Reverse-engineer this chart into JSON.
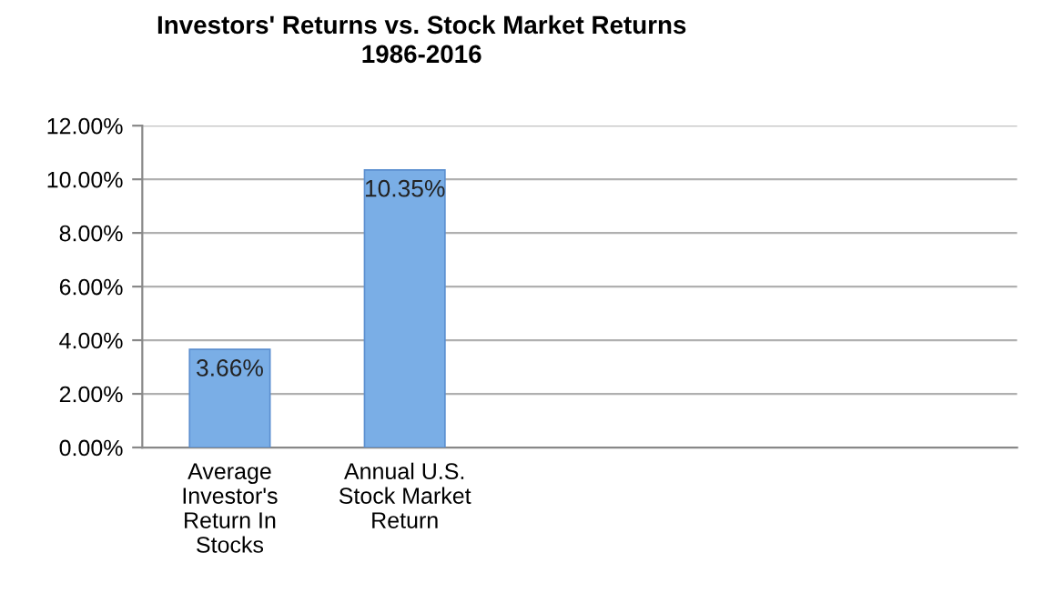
{
  "chart_data": {
    "type": "bar",
    "title": "Investors' Returns vs. Stock Market Returns\n1986-2016",
    "categories": [
      "Average\nInvestor's\nReturn In\nStocks",
      "Annual U.S.\nStock Market\nReturn",
      null,
      null,
      null
    ],
    "values": [
      3.66,
      10.35,
      null,
      null,
      null
    ],
    "value_labels": [
      "3.66%",
      "10.35%",
      null,
      null,
      null
    ],
    "color": "#7aaee6",
    "ylim": [
      0,
      12
    ],
    "yticks": [
      {
        "value": 0,
        "label": "0.00%"
      },
      {
        "value": 2,
        "label": "2.00%"
      },
      {
        "value": 4,
        "label": "4.00%"
      },
      {
        "value": 6,
        "label": "6.00%"
      },
      {
        "value": 8,
        "label": "8.00%"
      },
      {
        "value": 10,
        "label": "10.00%"
      },
      {
        "value": 12,
        "label": "12.00%"
      }
    ],
    "grid": "y"
  }
}
